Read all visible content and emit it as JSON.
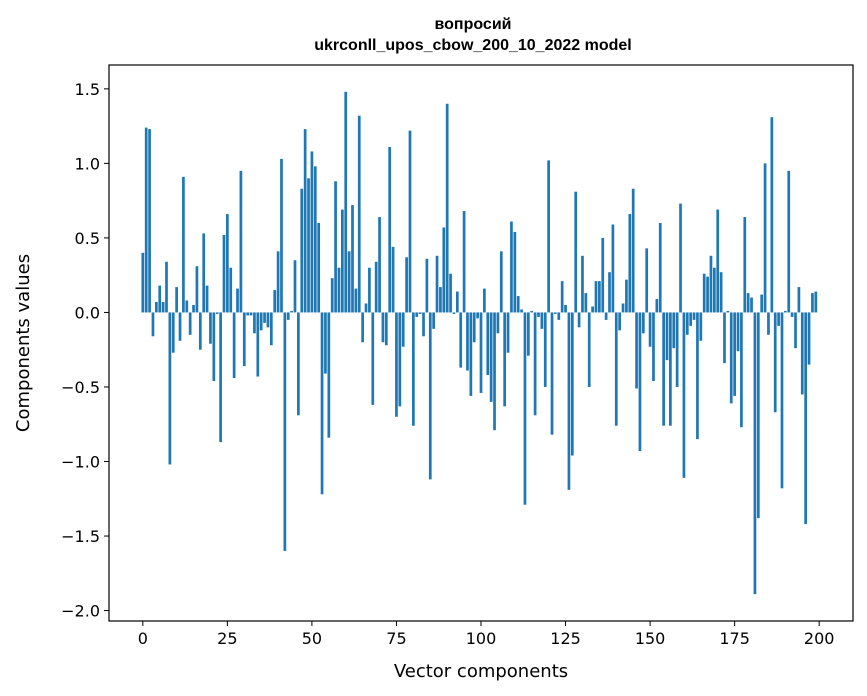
{
  "chart_data": {
    "type": "bar",
    "title": "вопросий",
    "subtitle": "ukrconll_upos_cbow_200_10_2022 model",
    "xlabel": "Vector components",
    "ylabel": "Components values",
    "xlim": [
      -10,
      210
    ],
    "ylim": [
      -2.07,
      1.66
    ],
    "xticks": [
      0,
      25,
      50,
      75,
      100,
      125,
      150,
      175,
      200
    ],
    "yticks": [
      -2.0,
      -1.5,
      -1.0,
      -0.5,
      0.0,
      0.5,
      1.0,
      1.5
    ],
    "ytick_labels": [
      "−2.0",
      "−1.5",
      "−1.0",
      "−0.5",
      "0.0",
      "0.5",
      "1.0",
      "1.5"
    ],
    "bar_color": "#1f77b4",
    "grid": false,
    "values": [
      0.4,
      1.24,
      1.23,
      -0.16,
      0.07,
      0.18,
      0.07,
      0.34,
      -1.02,
      -0.27,
      0.17,
      -0.19,
      0.91,
      0.08,
      -0.15,
      0.05,
      0.31,
      -0.25,
      0.53,
      0.18,
      -0.21,
      -0.46,
      -0.01,
      -0.87,
      0.52,
      0.66,
      0.3,
      -0.44,
      0.16,
      0.95,
      -0.36,
      -0.02,
      -0.02,
      -0.14,
      -0.43,
      -0.12,
      -0.07,
      -0.1,
      -0.22,
      0.15,
      0.41,
      1.03,
      -1.6,
      -0.05,
      0.01,
      0.35,
      -0.69,
      0.83,
      1.23,
      0.9,
      1.08,
      0.98,
      0.6,
      -1.22,
      -0.41,
      -0.84,
      0.23,
      0.88,
      0.3,
      0.69,
      1.48,
      0.41,
      0.72,
      0.16,
      1.32,
      -0.2,
      0.06,
      0.3,
      -0.62,
      0.34,
      0.64,
      -0.2,
      -0.22,
      1.11,
      0.44,
      -0.7,
      -0.63,
      -0.23,
      0.37,
      1.22,
      -0.76,
      -0.03,
      -0.01,
      -0.16,
      0.36,
      -1.12,
      -0.11,
      0.38,
      0.17,
      0.57,
      1.4,
      0.26,
      -0.01,
      0.14,
      -0.37,
      0.68,
      -0.39,
      -0.56,
      -0.2,
      -0.04,
      -0.54,
      0.16,
      -0.42,
      -0.6,
      -0.79,
      -0.14,
      0.41,
      -0.63,
      -0.27,
      0.61,
      0.54,
      0.11,
      0.02,
      -1.29,
      -0.29,
      0.01,
      -0.69,
      -0.03,
      -0.11,
      -0.5,
      1.02,
      -0.82,
      -0.01,
      -0.05,
      0.21,
      0.05,
      -1.19,
      -0.96,
      0.81,
      -0.1,
      0.38,
      0.13,
      -0.5,
      0.04,
      0.21,
      0.21,
      0.5,
      -0.05,
      0.27,
      0.59,
      -0.76,
      -0.12,
      0.06,
      0.22,
      0.66,
      0.83,
      -0.51,
      -0.93,
      -0.14,
      0.43,
      -0.23,
      -0.46,
      0.09,
      0.6,
      -0.76,
      -0.32,
      -0.76,
      -0.24,
      -0.5,
      0.73,
      -1.11,
      -0.15,
      -0.09,
      -0.05,
      -0.85,
      -0.19,
      0.26,
      0.24,
      0.38,
      0.3,
      0.69,
      0.27,
      -0.34,
      0.01,
      -0.61,
      -0.56,
      -0.26,
      -0.77,
      0.64,
      0.13,
      0.1,
      -1.89,
      -1.38,
      0.12,
      1.0,
      -0.15,
      1.31,
      -0.67,
      -0.09,
      -1.18,
      0.01,
      0.95,
      -0.03,
      -0.24,
      0.17,
      -0.55,
      -1.42,
      -0.35,
      0.13,
      0.14
    ]
  }
}
